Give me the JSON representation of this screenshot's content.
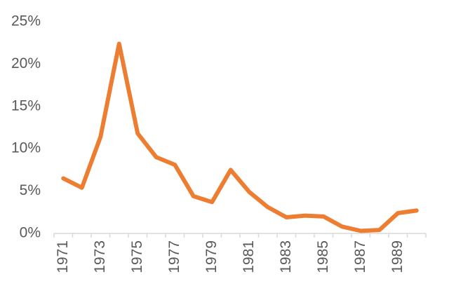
{
  "chart_data": {
    "type": "line",
    "categories": [
      "1971",
      null,
      "1973",
      null,
      "1975",
      null,
      "1977",
      null,
      "1979",
      null,
      "1981",
      null,
      "1983",
      null,
      "1985",
      null,
      "1987",
      null,
      "1989",
      null
    ],
    "series": [
      {
        "color": "#ED7D31",
        "values": [
          6.5,
          5.4,
          11.4,
          22.4,
          11.8,
          9.0,
          8.1,
          4.4,
          3.7,
          7.5,
          4.9,
          3.1,
          1.9,
          2.1,
          2.0,
          0.8,
          0.3,
          0.4,
          2.4,
          2.7
        ]
      }
    ],
    "ylim": [
      0,
      25
    ],
    "yticks": [
      {
        "value": 0,
        "label": "0%"
      },
      {
        "value": 5,
        "label": "5%"
      },
      {
        "value": 10,
        "label": "10%"
      },
      {
        "value": 15,
        "label": "15%"
      },
      {
        "value": 20,
        "label": "20%"
      },
      {
        "value": 25,
        "label": "25%"
      }
    ],
    "grid": false
  }
}
